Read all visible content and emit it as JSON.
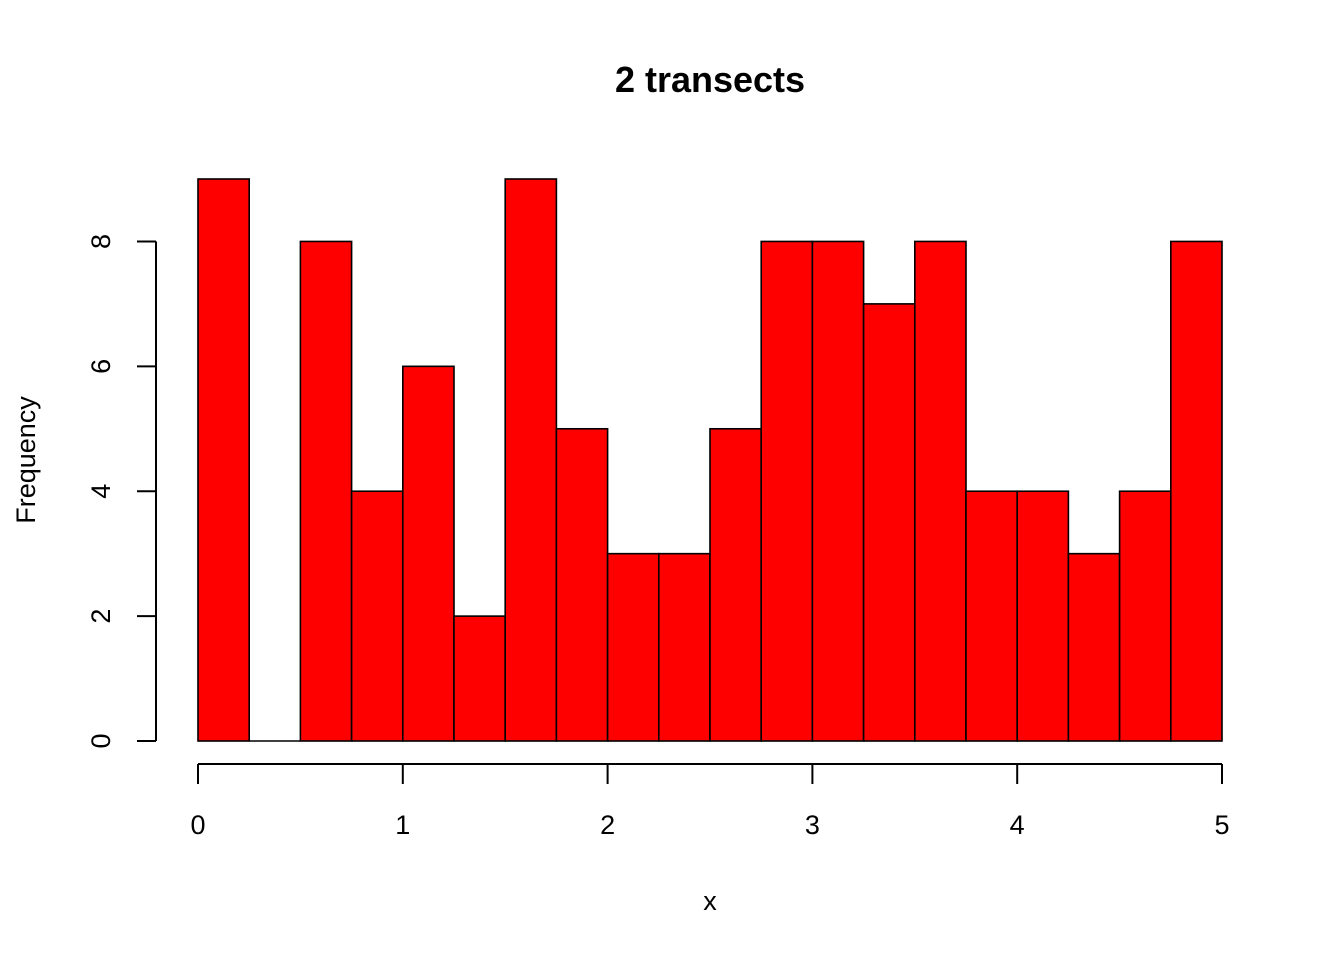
{
  "chart_data": {
    "type": "bar",
    "title": "2 transects",
    "xlabel": "x",
    "ylabel": "Frequency",
    "bin_edges": [
      0,
      0.25,
      0.5,
      0.75,
      1,
      1.25,
      1.5,
      1.75,
      2,
      2.25,
      2.5,
      2.75,
      3,
      3.25,
      3.5,
      3.75,
      4,
      4.25,
      4.5,
      4.75,
      5
    ],
    "values": [
      9,
      0,
      8,
      4,
      6,
      2,
      9,
      5,
      3,
      3,
      5,
      8,
      8,
      7,
      8,
      4,
      4,
      3,
      4,
      8
    ],
    "xlim": [
      0,
      5
    ],
    "ylim": [
      0,
      9
    ],
    "x_ticks": [
      "0",
      "1",
      "2",
      "3",
      "4",
      "5"
    ],
    "y_ticks": [
      "0",
      "2",
      "4",
      "6",
      "8"
    ],
    "grid": false,
    "bar_color": "#ff0000",
    "border_color": "#000000"
  }
}
